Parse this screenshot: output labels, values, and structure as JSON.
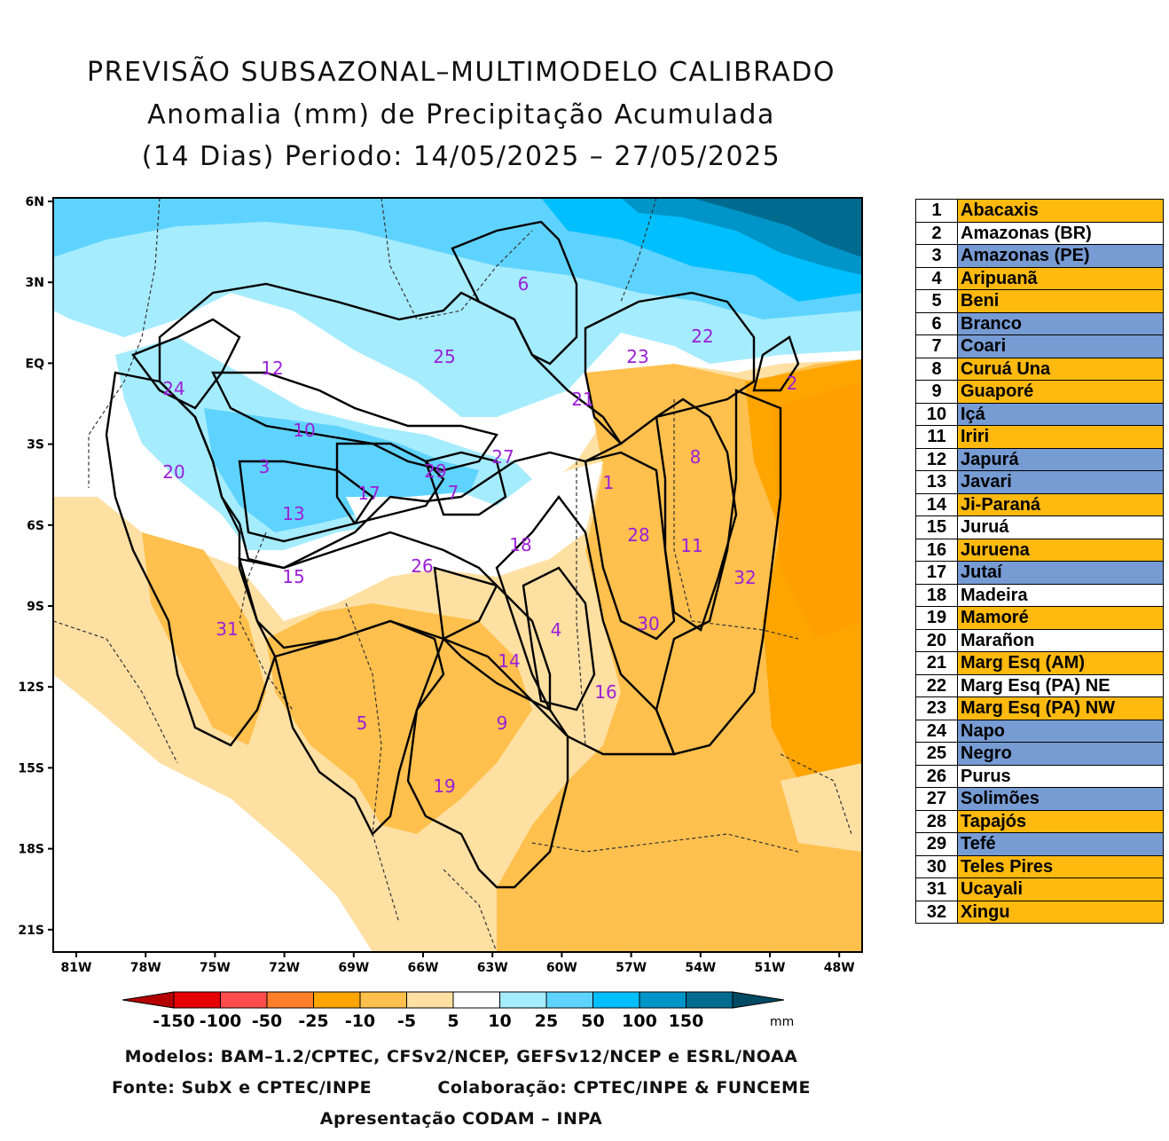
{
  "title": {
    "line1": "PREVISÃO SUBSAZONAL–MULTIMODELO CALIBRADO",
    "line2": "Anomalia (mm) de Precipitação Acumulada",
    "line3": "(14 Dias) Periodo: 14/05/2025 – 27/05/2025"
  },
  "map": {
    "lat_labels": [
      "6N",
      "3N",
      "EQ",
      "3S",
      "6S",
      "9S",
      "12S",
      "15S",
      "18S",
      "21S"
    ],
    "lon_labels": [
      "81W",
      "78W",
      "75W",
      "72W",
      "69W",
      "66W",
      "63W",
      "60W",
      "57W",
      "54W",
      "51W",
      "48W"
    ],
    "basin_labels": [
      {
        "n": "1"
      },
      {
        "n": "2"
      },
      {
        "n": "3"
      },
      {
        "n": "4"
      },
      {
        "n": "5"
      },
      {
        "n": "6"
      },
      {
        "n": "7"
      },
      {
        "n": "8"
      },
      {
        "n": "9"
      },
      {
        "n": "10"
      },
      {
        "n": "11"
      },
      {
        "n": "12"
      },
      {
        "n": "13"
      },
      {
        "n": "14"
      },
      {
        "n": "15"
      },
      {
        "n": "16"
      },
      {
        "n": "17"
      },
      {
        "n": "18"
      },
      {
        "n": "19"
      },
      {
        "n": "20"
      },
      {
        "n": "21"
      },
      {
        "n": "22"
      },
      {
        "n": "23"
      },
      {
        "n": "24"
      },
      {
        "n": "25"
      },
      {
        "n": "26"
      },
      {
        "n": "27"
      },
      {
        "n": "28"
      },
      {
        "n": "29"
      },
      {
        "n": "30"
      },
      {
        "n": "31"
      },
      {
        "n": "32"
      }
    ]
  },
  "colorbar": {
    "labels": [
      "-150",
      "-100",
      "-50",
      "-25",
      "-10",
      "-5",
      "5",
      "10",
      "25",
      "50",
      "100",
      "150"
    ],
    "unit": "mm",
    "colors": [
      "#b40000",
      "#e60000",
      "#ff4d4d",
      "#ff7f2a",
      "#ffa500",
      "#ffc04d",
      "#ffe0a3",
      "#ffffff",
      "#a6ecff",
      "#5fd3ff",
      "#00bfff",
      "#0095c8",
      "#006a8f",
      "#004a63"
    ]
  },
  "footer": {
    "line1": "Modelos: BAM–1.2/CPTEC, CFSv2/NCEP, GEFSv12/NCEP e ESRL/NOAA",
    "line2a": "Fonte: SubX e CPTEC/INPE",
    "line2b": "Colaboração: CPTEC/INPE & FUNCEME",
    "line3": "Apresentação CODAM – INPA"
  },
  "legend": [
    {
      "n": "1",
      "name": "Abacaxis",
      "status": "neg"
    },
    {
      "n": "2",
      "name": "Amazonas (BR)",
      "status": "neu"
    },
    {
      "n": "3",
      "name": "Amazonas (PE)",
      "status": "pos"
    },
    {
      "n": "4",
      "name": "Aripuanã",
      "status": "neg"
    },
    {
      "n": "5",
      "name": "Beni",
      "status": "neg"
    },
    {
      "n": "6",
      "name": "Branco",
      "status": "pos"
    },
    {
      "n": "7",
      "name": "Coari",
      "status": "pos"
    },
    {
      "n": "8",
      "name": "Curuá Una",
      "status": "neg"
    },
    {
      "n": "9",
      "name": "Guaporé",
      "status": "neg"
    },
    {
      "n": "10",
      "name": "Içá",
      "status": "pos"
    },
    {
      "n": "11",
      "name": "Iriri",
      "status": "neg"
    },
    {
      "n": "12",
      "name": "Japurá",
      "status": "pos"
    },
    {
      "n": "13",
      "name": "Javari",
      "status": "pos"
    },
    {
      "n": "14",
      "name": "Ji-Paraná",
      "status": "neg"
    },
    {
      "n": "15",
      "name": "Juruá",
      "status": "neu"
    },
    {
      "n": "16",
      "name": "Juruena",
      "status": "neg"
    },
    {
      "n": "17",
      "name": "Jutaí",
      "status": "pos"
    },
    {
      "n": "18",
      "name": "Madeira",
      "status": "neu"
    },
    {
      "n": "19",
      "name": "Mamoré",
      "status": "neg"
    },
    {
      "n": "20",
      "name": "Marañon",
      "status": "neu"
    },
    {
      "n": "21",
      "name": "Marg Esq (AM)",
      "status": "neg"
    },
    {
      "n": "22",
      "name": "Marg Esq (PA) NE",
      "status": "neu"
    },
    {
      "n": "23",
      "name": "Marg Esq (PA) NW",
      "status": "neg"
    },
    {
      "n": "24",
      "name": "Napo",
      "status": "pos"
    },
    {
      "n": "25",
      "name": "Negro",
      "status": "pos"
    },
    {
      "n": "26",
      "name": "Purus",
      "status": "neu"
    },
    {
      "n": "27",
      "name": "Solimões",
      "status": "pos"
    },
    {
      "n": "28",
      "name": "Tapajós",
      "status": "neg"
    },
    {
      "n": "29",
      "name": "Tefé",
      "status": "pos"
    },
    {
      "n": "30",
      "name": "Teles Pires",
      "status": "neg"
    },
    {
      "n": "31",
      "name": "Ucayali",
      "status": "neg"
    },
    {
      "n": "32",
      "name": "Xingu",
      "status": "neg"
    }
  ]
}
